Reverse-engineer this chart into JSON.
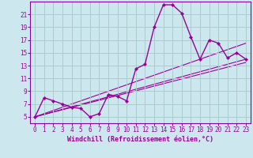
{
  "xlabel": "Windchill (Refroidissement éolien,°C)",
  "bg_color": "#cce8ee",
  "grid_color": "#aacccc",
  "line_color": "#990099",
  "spine_color": "#8800aa",
  "xlim": [
    -0.5,
    23.5
  ],
  "ylim": [
    4.0,
    23.0
  ],
  "xticks": [
    0,
    1,
    2,
    3,
    4,
    5,
    6,
    7,
    8,
    9,
    10,
    11,
    12,
    13,
    14,
    15,
    16,
    17,
    18,
    19,
    20,
    21,
    22,
    23
  ],
  "yticks": [
    5,
    7,
    9,
    11,
    13,
    15,
    17,
    19,
    21
  ],
  "main_series": [
    [
      0,
      5
    ],
    [
      1,
      8
    ],
    [
      2,
      7.5
    ],
    [
      3,
      7
    ],
    [
      4,
      6.5
    ],
    [
      5,
      6.3
    ],
    [
      6,
      5.0
    ],
    [
      7,
      5.5
    ],
    [
      8,
      8.5
    ],
    [
      9,
      8.2
    ],
    [
      10,
      7.5
    ],
    [
      11,
      12.5
    ],
    [
      12,
      13.2
    ],
    [
      13,
      19.0
    ],
    [
      14,
      22.5
    ],
    [
      15,
      22.5
    ],
    [
      16,
      21.2
    ],
    [
      17,
      17.5
    ],
    [
      18,
      14.0
    ],
    [
      19,
      17.0
    ],
    [
      20,
      16.5
    ],
    [
      21,
      14.2
    ],
    [
      22,
      15.0
    ],
    [
      23,
      14.0
    ]
  ],
  "diag_lines": [
    {
      "x": [
        0,
        23
      ],
      "y": [
        5.0,
        14.0
      ]
    },
    {
      "x": [
        0,
        23
      ],
      "y": [
        5.0,
        13.5
      ]
    },
    {
      "x": [
        0,
        23
      ],
      "y": [
        5.0,
        16.5
      ]
    }
  ],
  "xlabel_fontsize": 6,
  "tick_fontsize": 5.5
}
